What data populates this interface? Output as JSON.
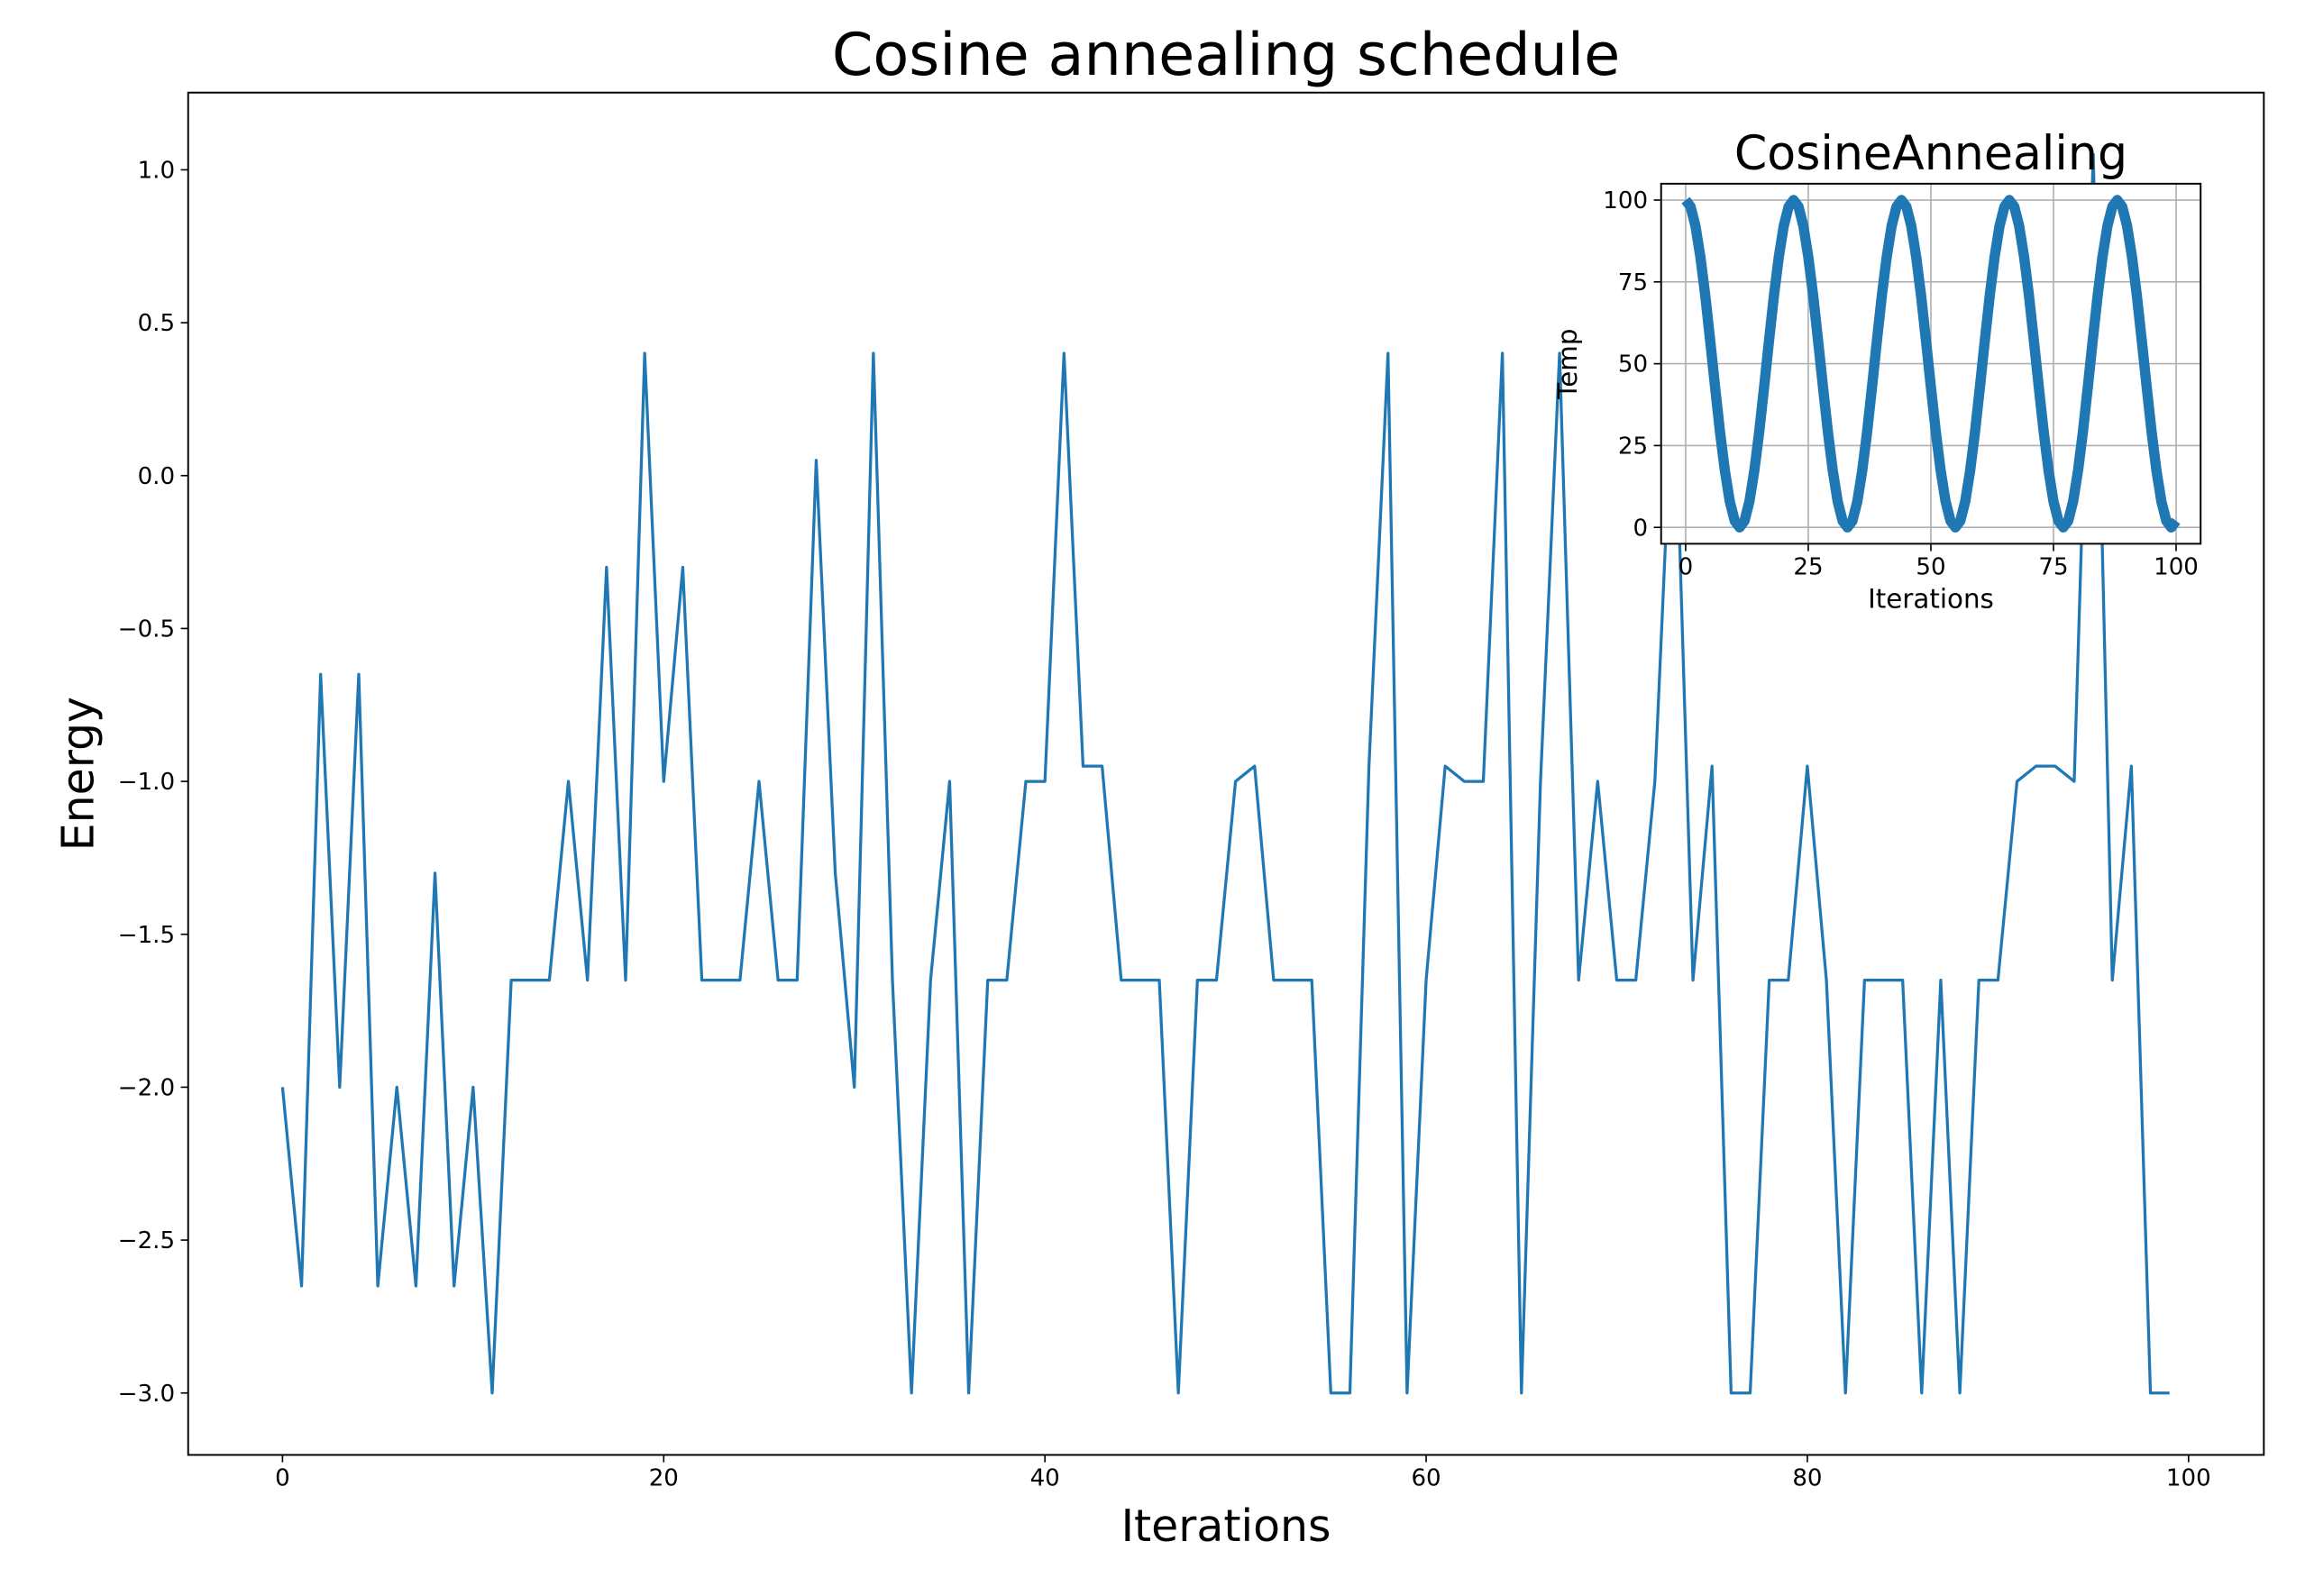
{
  "chart_data": [
    {
      "type": "line",
      "title": "Cosine annealing schedule",
      "xlabel": "Iterations",
      "ylabel": "Energy",
      "x": [
        0,
        1,
        2,
        3,
        4,
        5,
        6,
        7,
        8,
        9,
        10,
        11,
        12,
        13,
        14,
        15,
        16,
        17,
        18,
        19,
        20,
        21,
        22,
        23,
        24,
        25,
        26,
        27,
        28,
        29,
        30,
        31,
        32,
        33,
        34,
        35,
        36,
        37,
        38,
        39,
        40,
        41,
        42,
        43,
        44,
        45,
        46,
        47,
        48,
        49,
        50,
        51,
        52,
        53,
        54,
        55,
        56,
        57,
        58,
        59,
        60,
        61,
        62,
        63,
        64,
        65,
        66,
        67,
        68,
        69,
        70,
        71,
        72,
        73,
        74,
        75,
        76,
        77,
        78,
        79,
        80,
        81,
        82,
        83,
        84,
        85,
        86,
        87,
        88,
        89,
        90,
        91,
        92,
        93,
        94,
        95,
        96,
        97,
        98,
        99
      ],
      "series": [
        {
          "name": "Energy",
          "color": "#1f77b4",
          "values": [
            -2.0,
            -2.65,
            -0.65,
            -2.0,
            -0.65,
            -2.65,
            -2.0,
            -2.65,
            -1.3,
            -2.65,
            -2.0,
            -3.0,
            -1.65,
            -1.65,
            -1.65,
            -1.0,
            -1.65,
            -0.3,
            -1.65,
            0.4,
            -1.0,
            -0.3,
            -1.65,
            -1.65,
            -1.65,
            -1.0,
            -1.65,
            -1.65,
            0.05,
            -1.3,
            -2.0,
            0.4,
            -1.65,
            -3.0,
            -1.65,
            -1.0,
            -3.0,
            -1.65,
            -1.65,
            -1.0,
            -1.0,
            0.4,
            -0.95,
            -0.95,
            -1.65,
            -1.65,
            -1.65,
            -3.0,
            -1.65,
            -1.65,
            -1.0,
            -0.95,
            -1.65,
            -1.65,
            -1.65,
            -3.0,
            -3.0,
            -0.95,
            0.4,
            -3.0,
            -1.65,
            -0.95,
            -1.0,
            -1.0,
            0.4,
            -3.0,
            -1.0,
            0.4,
            -1.65,
            -1.0,
            -1.65,
            -1.65,
            -1.0,
            0.4,
            -1.65,
            -0.95,
            -3.0,
            -3.0,
            -1.65,
            -1.65,
            -0.95,
            -1.65,
            -3.0,
            -1.65,
            -1.65,
            -1.65,
            -3.0,
            -1.65,
            -3.0,
            -1.65,
            -1.65,
            -1.0,
            -0.95,
            -0.95,
            -1.0,
            1.05,
            -1.65,
            -0.95,
            -3.0,
            -3.0
          ]
        }
      ],
      "xlim": [
        -4.95,
        103.95
      ],
      "ylim": [
        -3.2025,
        1.2525
      ],
      "xticks": [
        0,
        20,
        40,
        60,
        80,
        100
      ],
      "yticks": [
        {
          "value": -3.0,
          "label": "−3.0"
        },
        {
          "value": -2.5,
          "label": "−2.5"
        },
        {
          "value": -2.0,
          "label": "−2.0"
        },
        {
          "value": -1.5,
          "label": "−1.5"
        },
        {
          "value": -1.0,
          "label": "−1.0"
        },
        {
          "value": -0.5,
          "label": "−0.5"
        },
        {
          "value": 0.0,
          "label": "0.0"
        },
        0.5,
        {
          "value": 1.0,
          "label": "1.0"
        }
      ],
      "grid": false,
      "linewidth": 2
    },
    {
      "type": "line",
      "title": "CosineAnnealing",
      "xlabel": "Iterations",
      "ylabel": "Temp",
      "x": [
        0,
        1,
        2,
        3,
        4,
        5,
        6,
        7,
        8,
        9,
        10,
        11,
        12,
        13,
        14,
        15,
        16,
        17,
        18,
        19,
        20,
        21,
        22,
        23,
        24,
        25,
        26,
        27,
        28,
        29,
        30,
        31,
        32,
        33,
        34,
        35,
        36,
        37,
        38,
        39,
        40,
        41,
        42,
        43,
        44,
        45,
        46,
        47,
        48,
        49,
        50,
        51,
        52,
        53,
        54,
        55,
        56,
        57,
        58,
        59,
        60,
        61,
        62,
        63,
        64,
        65,
        66,
        67,
        68,
        69,
        70,
        71,
        72,
        73,
        74,
        75,
        76,
        77,
        78,
        79,
        80,
        81,
        82,
        83,
        84,
        85,
        86,
        87,
        88,
        89,
        90,
        91,
        92,
        93,
        94,
        95,
        96,
        97,
        98,
        99,
        100
      ],
      "series": [
        {
          "name": "Temp",
          "color": "#1f77b4",
          "values": [
            100,
            98,
            92.1,
            82.7,
            70.8,
            57.1,
            42.9,
            29.2,
            17.3,
            7.9,
            2,
            0,
            2,
            7.9,
            17.3,
            29.2,
            42.9,
            57.1,
            70.8,
            82.7,
            92.1,
            98,
            100,
            98,
            92.1,
            82.7,
            70.8,
            57.1,
            42.9,
            29.2,
            17.3,
            7.9,
            2,
            0,
            2,
            7.9,
            17.3,
            29.2,
            42.9,
            57.1,
            70.8,
            82.7,
            92.1,
            98,
            100,
            98,
            92.1,
            82.7,
            70.8,
            57.1,
            42.9,
            29.2,
            17.3,
            7.9,
            2,
            0,
            2,
            7.9,
            17.3,
            29.2,
            42.9,
            57.1,
            70.8,
            82.7,
            92.1,
            98,
            100,
            98,
            92.1,
            82.7,
            70.8,
            57.1,
            42.9,
            29.2,
            17.3,
            7.9,
            2,
            0,
            2,
            7.9,
            17.3,
            29.2,
            42.9,
            57.1,
            70.8,
            82.7,
            92.1,
            98,
            100,
            98,
            92.1,
            82.7,
            70.8,
            57.1,
            42.9,
            29.2,
            17.3,
            7.9,
            2,
            0,
            2
          ]
        }
      ],
      "xlim": [
        -5,
        105
      ],
      "ylim": [
        -5,
        105
      ],
      "xticks": [
        0,
        25,
        50,
        75,
        100
      ],
      "yticks": [
        0,
        25,
        50,
        75,
        100
      ],
      "grid": true,
      "linewidth": 7
    }
  ]
}
